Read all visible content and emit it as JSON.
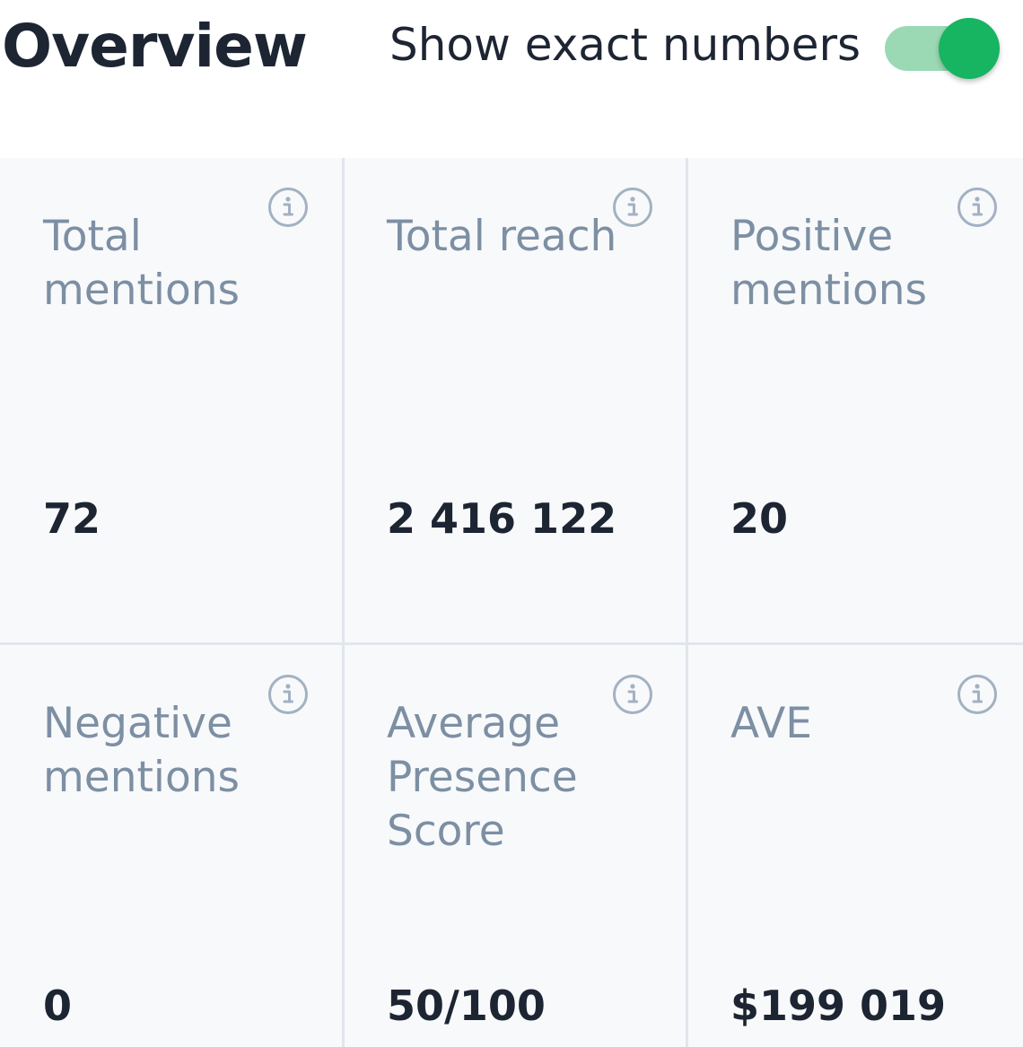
{
  "header": {
    "title": "Overview",
    "toggle_label": "Show exact numbers",
    "toggle_on": true
  },
  "colors": {
    "accent": "#17b462",
    "toggle_track": "#9ad9b3",
    "label": "#7d8fa3",
    "value": "#1d2533",
    "divider": "#e2e6ec"
  },
  "metrics": [
    {
      "label": "Total mentions",
      "value": "72",
      "icon": "info-icon"
    },
    {
      "label": "Total reach",
      "value": "2 416 122",
      "icon": "info-icon"
    },
    {
      "label": "Positive mentions",
      "value": "20",
      "icon": "info-icon"
    },
    {
      "label": "Negative mentions",
      "value": "0",
      "icon": "info-icon"
    },
    {
      "label": "Average Presence Score",
      "value": "50/100",
      "icon": "info-icon"
    },
    {
      "label": "AVE",
      "value": "$199 019",
      "icon": "info-icon"
    }
  ]
}
